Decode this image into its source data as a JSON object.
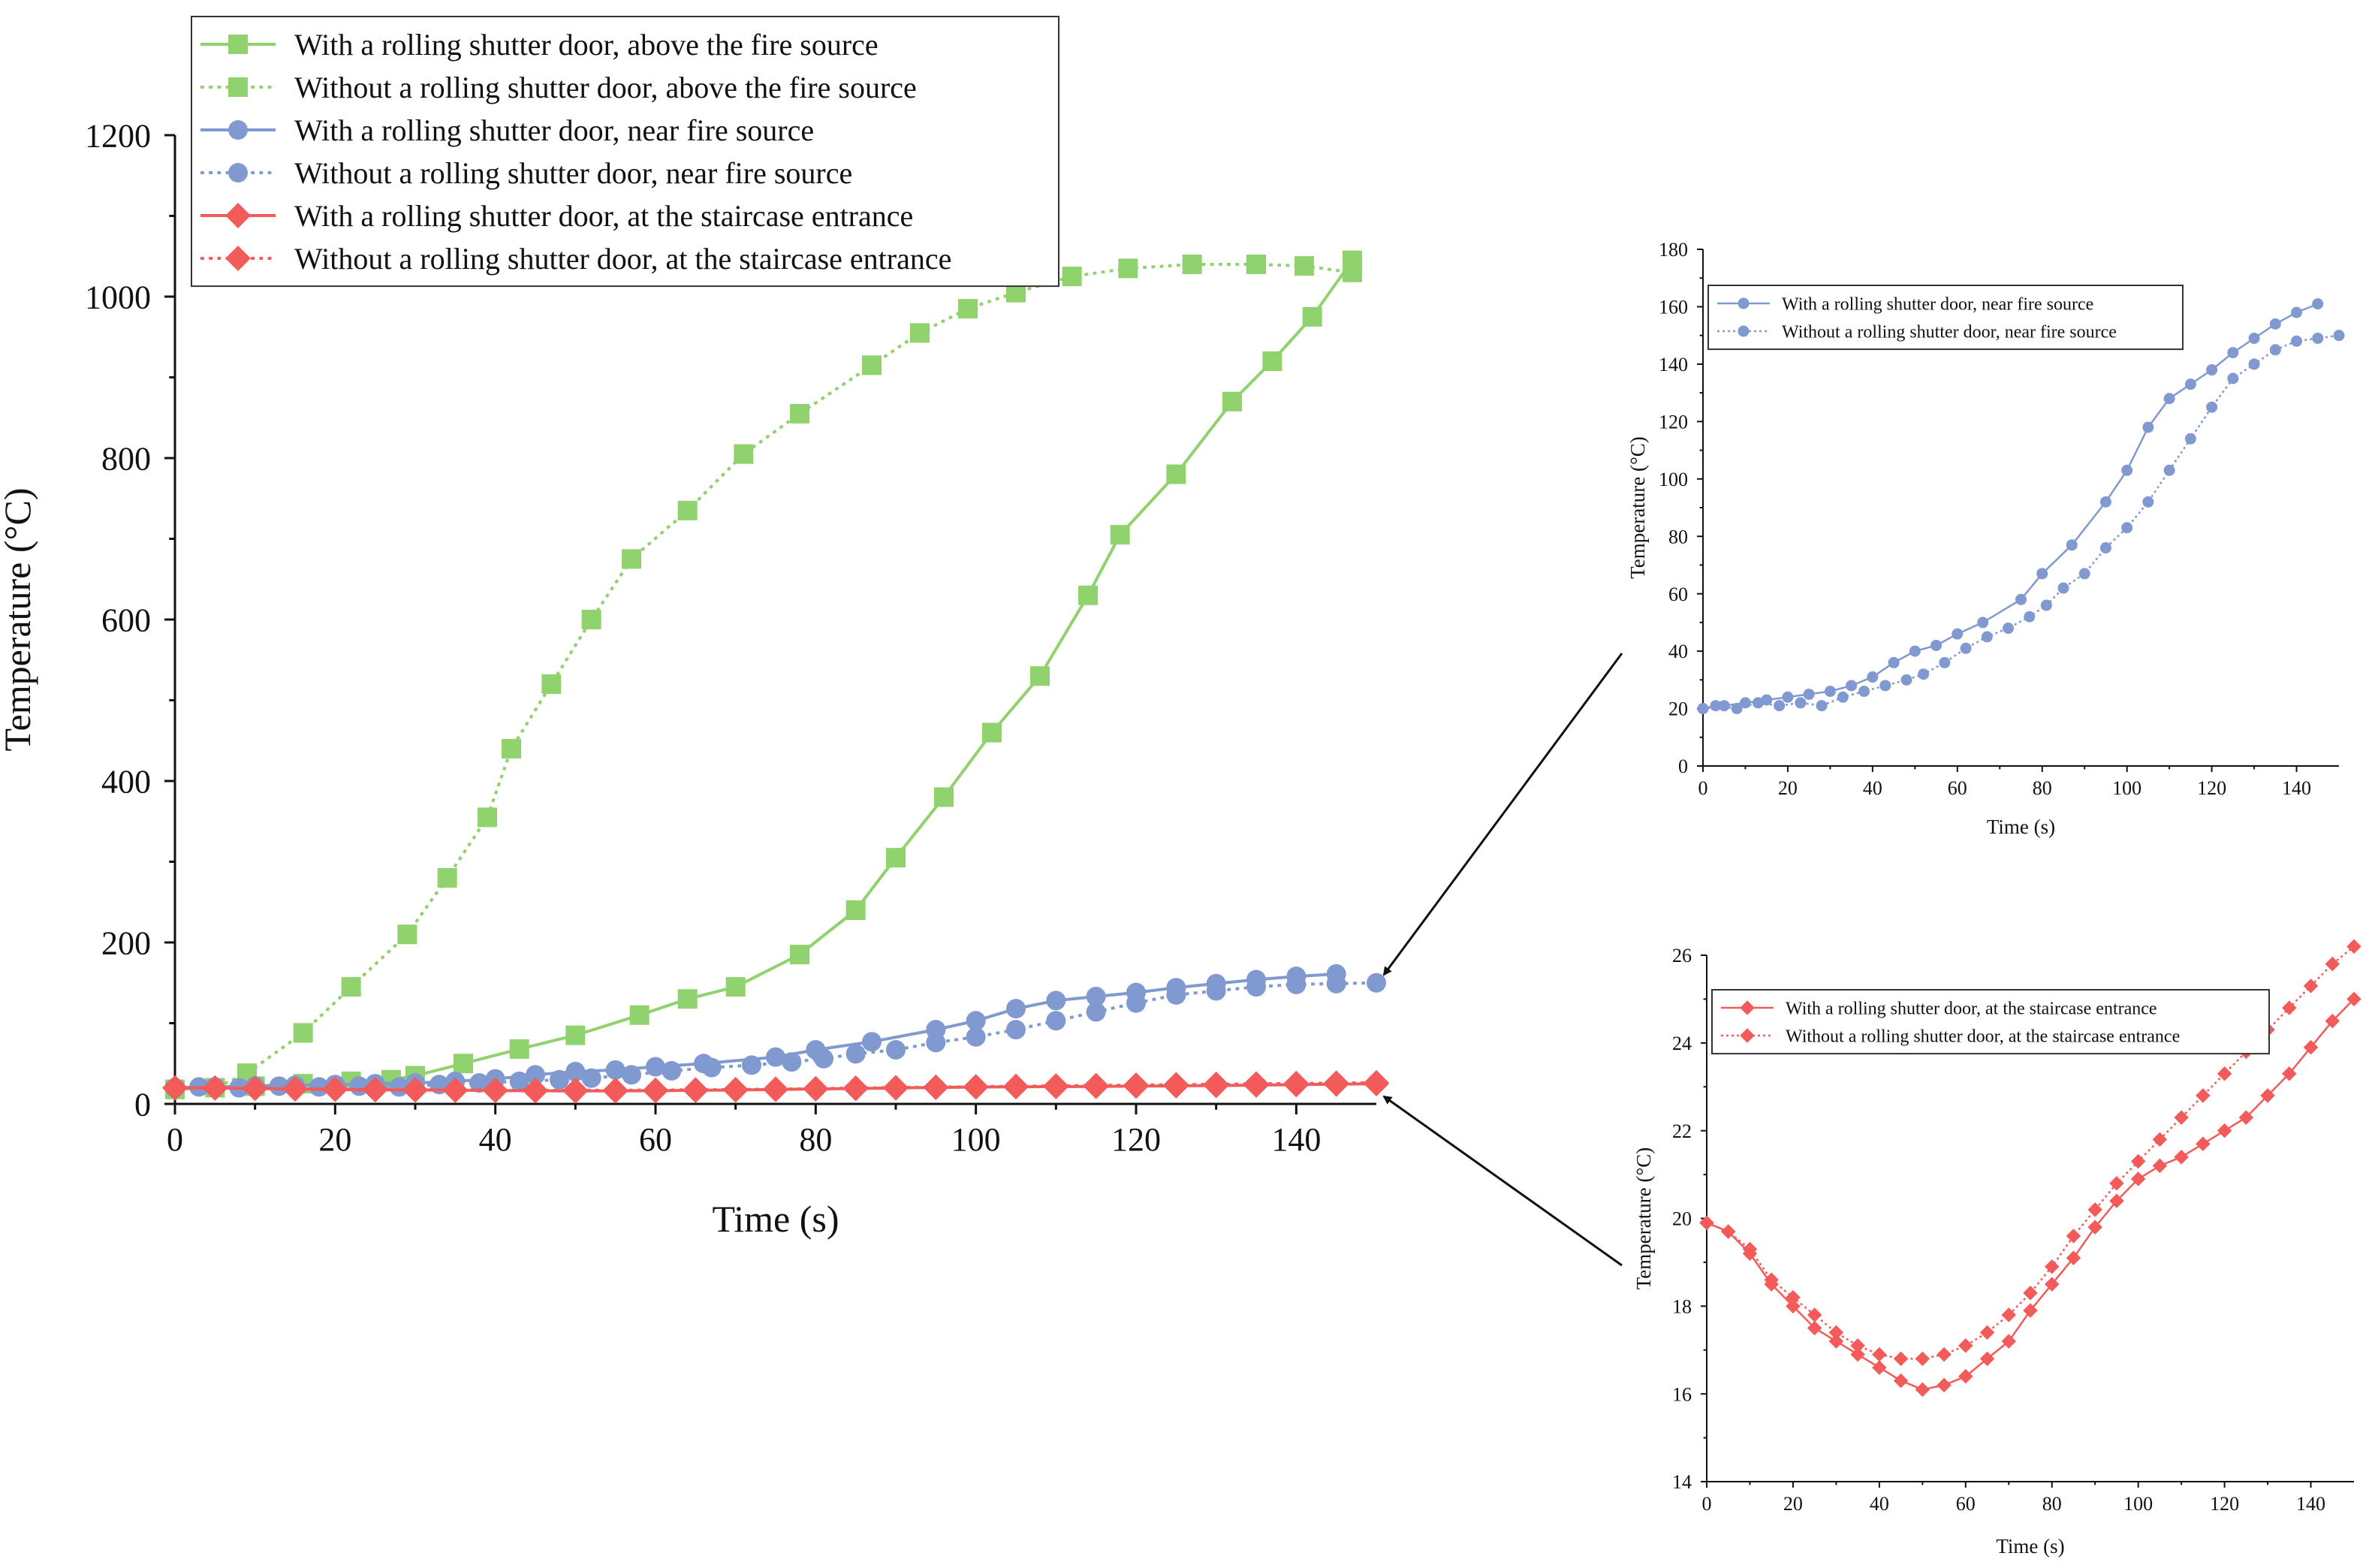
{
  "chart_data": [
    {
      "id": "main",
      "type": "line",
      "title": "",
      "xlabel": "Time (s)",
      "ylabel": "Temperature (°C)",
      "xlim": [
        0,
        150
      ],
      "ylim": [
        0,
        1200
      ],
      "xticks": [
        0,
        20,
        40,
        60,
        80,
        100,
        120,
        140
      ],
      "yticks": [
        0,
        200,
        400,
        600,
        800,
        1000,
        1200
      ],
      "legend_position": "top-left",
      "series": [
        {
          "name": "With a rolling shutter door, above the fire source",
          "color": "#90d26d",
          "dash": "solid",
          "marker": "square",
          "x": [
            0,
            5,
            10,
            16,
            22,
            27,
            30,
            36,
            43,
            50,
            58,
            64,
            70,
            78,
            85,
            90,
            96,
            102,
            108,
            114,
            118,
            125,
            132,
            137,
            142,
            147
          ],
          "y": [
            18,
            20,
            22,
            25,
            28,
            30,
            35,
            50,
            68,
            85,
            110,
            130,
            145,
            185,
            240,
            305,
            380,
            460,
            530,
            630,
            705,
            780,
            870,
            920,
            975,
            1045
          ]
        },
        {
          "name": "Without a rolling shutter door, above the fire source",
          "color": "#90d26d",
          "dash": "dotted",
          "marker": "square",
          "x": [
            0,
            5,
            9,
            16,
            22,
            29,
            34,
            39,
            42,
            47,
            52,
            57,
            64,
            71,
            78,
            87,
            93,
            99,
            105,
            112,
            119,
            127,
            135,
            141,
            147
          ],
          "y": [
            18,
            20,
            38,
            88,
            145,
            210,
            280,
            355,
            440,
            520,
            600,
            675,
            735,
            805,
            855,
            915,
            955,
            985,
            1005,
            1025,
            1035,
            1040,
            1040,
            1038,
            1030
          ]
        },
        {
          "name": "With a rolling shutter door, near fire source",
          "color": "#8099d0",
          "dash": "solid",
          "marker": "circle",
          "x": [
            0,
            5,
            10,
            15,
            20,
            25,
            30,
            35,
            40,
            45,
            50,
            55,
            60,
            66,
            75,
            80,
            87,
            95,
            100,
            105,
            110,
            115,
            120,
            125,
            130,
            135,
            140,
            145
          ],
          "y": [
            20,
            21,
            22,
            23,
            24,
            25,
            26,
            28,
            31,
            36,
            40,
            42,
            46,
            50,
            58,
            67,
            77,
            92,
            103,
            118,
            128,
            133,
            138,
            144,
            149,
            154,
            158,
            161
          ]
        },
        {
          "name": "Without a rolling shutter door, near fire source",
          "color": "#8099d0",
          "dash": "dotted",
          "marker": "circle",
          "x": [
            0,
            3,
            8,
            13,
            18,
            23,
            28,
            33,
            38,
            43,
            48,
            52,
            57,
            62,
            67,
            72,
            77,
            81,
            85,
            90,
            95,
            100,
            105,
            110,
            115,
            120,
            125,
            130,
            135,
            140,
            145,
            150
          ],
          "y": [
            20,
            21,
            20,
            22,
            21,
            22,
            21,
            24,
            26,
            28,
            30,
            32,
            36,
            41,
            45,
            48,
            52,
            56,
            62,
            67,
            76,
            83,
            92,
            103,
            114,
            125,
            135,
            140,
            145,
            148,
            149,
            150
          ]
        },
        {
          "name": "With a rolling shutter door, at the staircase entrance",
          "color": "#f35b5b",
          "dash": "solid",
          "marker": "diamond",
          "x": [
            0,
            5,
            10,
            15,
            20,
            25,
            30,
            35,
            40,
            45,
            50,
            55,
            60,
            65,
            70,
            75,
            80,
            85,
            90,
            95,
            100,
            105,
            110,
            115,
            120,
            125,
            130,
            135,
            140,
            145,
            150
          ],
          "y": [
            19.9,
            19.7,
            19.2,
            18.5,
            18.0,
            17.5,
            17.2,
            16.9,
            16.6,
            16.3,
            16.1,
            16.2,
            16.4,
            16.8,
            17.2,
            17.9,
            18.5,
            19.1,
            19.8,
            20.4,
            20.9,
            21.2,
            21.4,
            21.7,
            22.0,
            22.3,
            22.8,
            23.3,
            23.9,
            24.5,
            25.0
          ]
        },
        {
          "name": "Without a rolling shutter door, at the staircase entrance",
          "color": "#f35b5b",
          "dash": "dotted",
          "marker": "diamond",
          "x": [
            0,
            5,
            10,
            15,
            20,
            25,
            30,
            35,
            40,
            45,
            50,
            55,
            60,
            65,
            70,
            75,
            80,
            85,
            90,
            95,
            100,
            105,
            110,
            115,
            120,
            125,
            130,
            135,
            140,
            145,
            150
          ],
          "y": [
            19.9,
            19.7,
            19.3,
            18.6,
            18.2,
            17.8,
            17.4,
            17.1,
            16.9,
            16.8,
            16.8,
            16.9,
            17.1,
            17.4,
            17.8,
            18.3,
            18.9,
            19.6,
            20.2,
            20.8,
            21.3,
            21.8,
            22.3,
            22.8,
            23.3,
            23.8,
            24.3,
            24.8,
            25.3,
            25.8,
            26.2
          ]
        }
      ]
    },
    {
      "id": "inset_near",
      "type": "line",
      "title": "",
      "xlabel": "Time (s)",
      "ylabel": "Temperature (°C)",
      "xlim": [
        0,
        150
      ],
      "ylim": [
        0,
        180
      ],
      "xticks": [
        0,
        20,
        40,
        60,
        80,
        100,
        120,
        140
      ],
      "yticks": [
        0,
        20,
        40,
        60,
        80,
        100,
        120,
        140,
        160,
        180
      ],
      "legend_position": "top-left",
      "series": [
        {
          "name": "With a rolling shutter door, near fire source",
          "color": "#8099d0",
          "dash": "solid",
          "marker": "circle",
          "x": [
            0,
            5,
            10,
            15,
            20,
            25,
            30,
            35,
            40,
            45,
            50,
            55,
            60,
            66,
            75,
            80,
            87,
            95,
            100,
            105,
            110,
            115,
            120,
            125,
            130,
            135,
            140,
            145
          ],
          "y": [
            20,
            21,
            22,
            23,
            24,
            25,
            26,
            28,
            31,
            36,
            40,
            42,
            46,
            50,
            58,
            67,
            77,
            92,
            103,
            118,
            128,
            133,
            138,
            144,
            149,
            154,
            158,
            161
          ]
        },
        {
          "name": "Without a rolling shutter door, near fire source",
          "color": "#8099d0",
          "dash": "dotted",
          "marker": "circle",
          "x": [
            0,
            3,
            8,
            13,
            18,
            23,
            28,
            33,
            38,
            43,
            48,
            52,
            57,
            62,
            67,
            72,
            77,
            81,
            85,
            90,
            95,
            100,
            105,
            110,
            115,
            120,
            125,
            130,
            135,
            140,
            145,
            150
          ],
          "y": [
            20,
            21,
            20,
            22,
            21,
            22,
            21,
            24,
            26,
            28,
            30,
            32,
            36,
            41,
            45,
            48,
            52,
            56,
            62,
            67,
            76,
            83,
            92,
            103,
            114,
            125,
            135,
            140,
            145,
            148,
            149,
            150
          ]
        }
      ]
    },
    {
      "id": "inset_stair",
      "type": "line",
      "title": "",
      "xlabel": "Time (s)",
      "ylabel": "Temperature (°C)",
      "xlim": [
        0,
        150
      ],
      "ylim": [
        14,
        26
      ],
      "xticks": [
        0,
        20,
        40,
        60,
        80,
        100,
        120,
        140
      ],
      "yticks": [
        14,
        16,
        18,
        20,
        22,
        24,
        26
      ],
      "legend_position": "top-left",
      "series": [
        {
          "name": "With a rolling shutter door, at the staircase entrance",
          "color": "#f35b5b",
          "dash": "solid",
          "marker": "diamond",
          "x": [
            0,
            5,
            10,
            15,
            20,
            25,
            30,
            35,
            40,
            45,
            50,
            55,
            60,
            65,
            70,
            75,
            80,
            85,
            90,
            95,
            100,
            105,
            110,
            115,
            120,
            125,
            130,
            135,
            140,
            145,
            150
          ],
          "y": [
            19.9,
            19.7,
            19.2,
            18.5,
            18.0,
            17.5,
            17.2,
            16.9,
            16.6,
            16.3,
            16.1,
            16.2,
            16.4,
            16.8,
            17.2,
            17.9,
            18.5,
            19.1,
            19.8,
            20.4,
            20.9,
            21.2,
            21.4,
            21.7,
            22.0,
            22.3,
            22.8,
            23.3,
            23.9,
            24.5,
            25.0
          ]
        },
        {
          "name": "Without a rolling shutter door, at the staircase entrance",
          "color": "#f35b5b",
          "dash": "dotted",
          "marker": "diamond",
          "x": [
            0,
            5,
            10,
            15,
            20,
            25,
            30,
            35,
            40,
            45,
            50,
            55,
            60,
            65,
            70,
            75,
            80,
            85,
            90,
            95,
            100,
            105,
            110,
            115,
            120,
            125,
            130,
            135,
            140,
            145,
            150
          ],
          "y": [
            19.9,
            19.7,
            19.3,
            18.6,
            18.2,
            17.8,
            17.4,
            17.1,
            16.9,
            16.8,
            16.8,
            16.9,
            17.1,
            17.4,
            17.8,
            18.3,
            18.9,
            19.6,
            20.2,
            20.8,
            21.3,
            21.8,
            22.3,
            22.8,
            23.3,
            23.8,
            24.3,
            24.8,
            25.3,
            25.8,
            26.2
          ]
        }
      ]
    }
  ]
}
